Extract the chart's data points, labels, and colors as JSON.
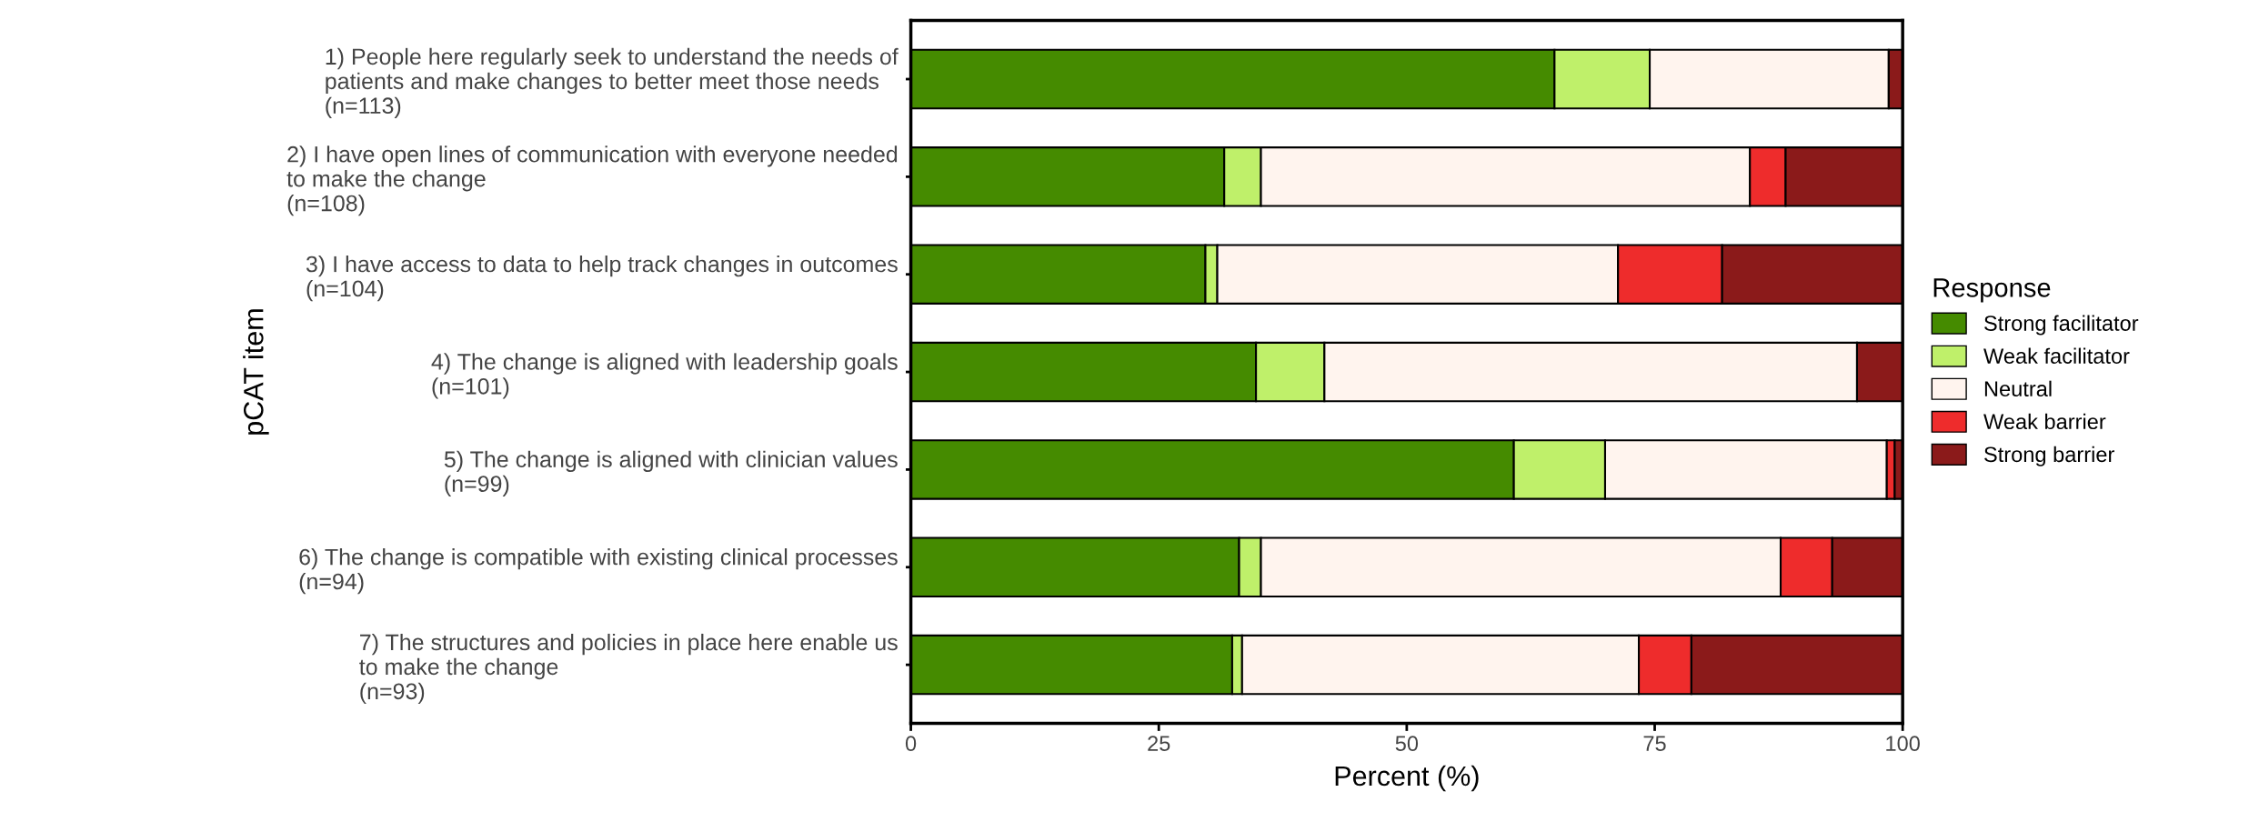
{
  "chart_data": {
    "type": "bar",
    "orientation": "horizontal",
    "stacked": true,
    "xlabel": "Percent (%)",
    "ylabel": "pCAT item",
    "legend_title": "Response",
    "legend": "right",
    "grid": false,
    "categories": [
      "1) People here regularly seek to understand the needs of\npatients and make changes to better meet those needs\n(n=113)",
      "2) I have open lines of communication with everyone needed\nto make the change\n(n=108)",
      "3) I have access to data to help track changes in outcomes\n(n=104)",
      "4) The change is aligned with leadership goals\n(n=101)",
      "5) The change is aligned with clinician values\n(n=99)",
      "6) The change is compatible with existing clinical processes\n(n=94)",
      "7) The structures and policies in place here enable us\nto make the change\n(n=93)"
    ],
    "xlim": [
      0,
      100
    ],
    "xticks": [
      0,
      25,
      50,
      75,
      100
    ],
    "series": [
      {
        "name": "Strong facilitator",
        "color": "#458b00",
        "values": [
          64.9,
          31.6,
          29.7,
          34.8,
          60.8,
          33.1,
          32.4
        ]
      },
      {
        "name": "Weak facilitator",
        "color": "#bff06a",
        "values": [
          9.6,
          3.7,
          1.2,
          6.9,
          9.2,
          2.2,
          1.0
        ]
      },
      {
        "name": "Neutral",
        "color": "#fff4ee",
        "values": [
          24.1,
          49.3,
          40.4,
          53.7,
          28.4,
          52.4,
          40.0
        ]
      },
      {
        "name": "Weak barrier",
        "color": "#ee2c2c",
        "values": [
          0,
          3.6,
          10.5,
          0,
          0.8,
          5.2,
          5.3
        ]
      },
      {
        "name": "Strong barrier",
        "color": "#8b1a1a",
        "values": [
          1.4,
          11.8,
          18.2,
          4.6,
          0.8,
          7.1,
          21.3
        ]
      }
    ]
  }
}
